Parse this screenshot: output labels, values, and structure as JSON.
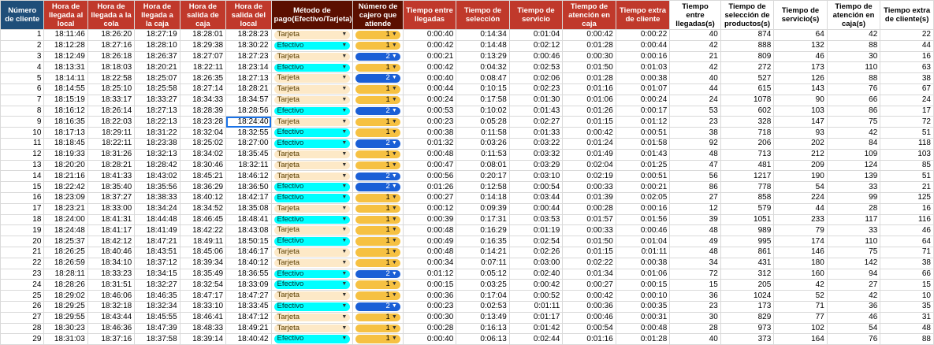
{
  "headers": [
    "Número de cliente",
    "Hora de llegada al local",
    "Hora de llegada a la cola",
    "Hora de llegada a la caja",
    "Hora de salida de caja",
    "Hora de salida del local",
    "Método de pago(Efectivo/Tarjeta)",
    "Número de cajero que atiende",
    "Tiempo entre llegadas",
    "Tiempo de selección",
    "Tiempo de servicio",
    "Tiempo de atención en caja",
    "Tiempo extra de cliente",
    "Tiempo entre llegadas(s)",
    "Tiempo de selección de productos(s)",
    "Tiempo de servicio(s)",
    "Tiempo de atención en caja(s)",
    "Tiempo extra de cliente(s)"
  ],
  "colors": {
    "header_blue": "#1f4e79",
    "header_red": "#c0392b",
    "header_dark": "#5b0f00",
    "chip_tarjeta": "#fde9c7",
    "chip_efectivo": "#00ffff",
    "chip_cajero_1": "#f6c142",
    "chip_cajero_2": "#1a5fd6",
    "selection": "#1a73e8"
  },
  "icons": {
    "dropdown": "dropdown-arrow-icon"
  },
  "selected_cell": {
    "row": 9,
    "col": 5
  },
  "rows": [
    [
      "1",
      "18:11:46",
      "18:26:20",
      "18:27:19",
      "18:28:01",
      "18:28:23",
      "Tarjeta",
      "1",
      "0:00:40",
      "0:14:34",
      "0:01:04",
      "0:00:42",
      "0:00:22",
      "40",
      "874",
      "64",
      "42",
      "22"
    ],
    [
      "2",
      "18:12:28",
      "18:27:16",
      "18:28:10",
      "18:29:38",
      "18:30:22",
      "Efectivo",
      "1",
      "0:00:42",
      "0:14:48",
      "0:02:12",
      "0:01:28",
      "0:00:44",
      "42",
      "888",
      "132",
      "88",
      "44"
    ],
    [
      "3",
      "18:12:49",
      "18:26:18",
      "18:26:37",
      "18:27:07",
      "18:27:23",
      "Tarjeta",
      "2",
      "0:00:21",
      "0:13:29",
      "0:00:46",
      "0:00:30",
      "0:00:16",
      "21",
      "809",
      "46",
      "30",
      "16"
    ],
    [
      "4",
      "18:13:31",
      "18:18:03",
      "18:20:21",
      "18:22:11",
      "18:23:14",
      "Efectivo",
      "1",
      "0:00:42",
      "0:04:32",
      "0:02:53",
      "0:01:50",
      "0:01:03",
      "42",
      "272",
      "173",
      "110",
      "63"
    ],
    [
      "5",
      "18:14:11",
      "18:22:58",
      "18:25:07",
      "18:26:35",
      "18:27:13",
      "Tarjeta",
      "2",
      "0:00:40",
      "0:08:47",
      "0:02:06",
      "0:01:28",
      "0:00:38",
      "40",
      "527",
      "126",
      "88",
      "38"
    ],
    [
      "6",
      "18:14:55",
      "18:25:10",
      "18:25:58",
      "18:27:14",
      "18:28:21",
      "Tarjeta",
      "1",
      "0:00:44",
      "0:10:15",
      "0:02:23",
      "0:01:16",
      "0:01:07",
      "44",
      "615",
      "143",
      "76",
      "67"
    ],
    [
      "7",
      "18:15:19",
      "18:33:17",
      "18:33:27",
      "18:34:33",
      "18:34:57",
      "Tarjeta",
      "1",
      "0:00:24",
      "0:17:58",
      "0:01:30",
      "0:01:06",
      "0:00:24",
      "24",
      "1078",
      "90",
      "66",
      "24"
    ],
    [
      "8",
      "18:16:12",
      "18:26:14",
      "18:27:13",
      "18:28:39",
      "18:28:56",
      "Efectivo",
      "2",
      "0:00:53",
      "0:10:02",
      "0:01:43",
      "0:01:26",
      "0:00:17",
      "53",
      "602",
      "103",
      "86",
      "17"
    ],
    [
      "9",
      "18:16:35",
      "18:22:03",
      "18:22:13",
      "18:23:28",
      "18:24:40",
      "Tarjeta",
      "1",
      "0:00:23",
      "0:05:28",
      "0:02:27",
      "0:01:15",
      "0:01:12",
      "23",
      "328",
      "147",
      "75",
      "72"
    ],
    [
      "10",
      "18:17:13",
      "18:29:11",
      "18:31:22",
      "18:32:04",
      "18:32:55",
      "Efectivo",
      "1",
      "0:00:38",
      "0:11:58",
      "0:01:33",
      "0:00:42",
      "0:00:51",
      "38",
      "718",
      "93",
      "42",
      "51"
    ],
    [
      "11",
      "18:18:45",
      "18:22:11",
      "18:23:38",
      "18:25:02",
      "18:27:00",
      "Efectivo",
      "2",
      "0:01:32",
      "0:03:26",
      "0:03:22",
      "0:01:24",
      "0:01:58",
      "92",
      "206",
      "202",
      "84",
      "118"
    ],
    [
      "12",
      "18:19:33",
      "18:31:26",
      "18:32:13",
      "18:34:02",
      "18:35:45",
      "Tarjeta",
      "1",
      "0:00:48",
      "0:11:53",
      "0:03:32",
      "0:01:49",
      "0:01:43",
      "48",
      "713",
      "212",
      "109",
      "103"
    ],
    [
      "13",
      "18:20:20",
      "18:28:21",
      "18:28:42",
      "18:30:46",
      "18:32:11",
      "Tarjeta",
      "1",
      "0:00:47",
      "0:08:01",
      "0:03:29",
      "0:02:04",
      "0:01:25",
      "47",
      "481",
      "209",
      "124",
      "85"
    ],
    [
      "14",
      "18:21:16",
      "18:41:33",
      "18:43:02",
      "18:45:21",
      "18:46:12",
      "Tarjeta",
      "2",
      "0:00:56",
      "0:20:17",
      "0:03:10",
      "0:02:19",
      "0:00:51",
      "56",
      "1217",
      "190",
      "139",
      "51"
    ],
    [
      "15",
      "18:22:42",
      "18:35:40",
      "18:35:56",
      "18:36:29",
      "18:36:50",
      "Efectivo",
      "2",
      "0:01:26",
      "0:12:58",
      "0:00:54",
      "0:00:33",
      "0:00:21",
      "86",
      "778",
      "54",
      "33",
      "21"
    ],
    [
      "16",
      "18:23:09",
      "18:37:27",
      "18:38:33",
      "18:40:12",
      "18:42:17",
      "Efectivo",
      "1",
      "0:00:27",
      "0:14:18",
      "0:03:44",
      "0:01:39",
      "0:02:05",
      "27",
      "858",
      "224",
      "99",
      "125"
    ],
    [
      "17",
      "18:23:21",
      "18:33:00",
      "18:34:24",
      "18:34:52",
      "18:35:08",
      "Tarjeta",
      "1",
      "0:00:12",
      "0:09:39",
      "0:00:44",
      "0:00:28",
      "0:00:16",
      "12",
      "579",
      "44",
      "28",
      "16"
    ],
    [
      "18",
      "18:24:00",
      "18:41:31",
      "18:44:48",
      "18:46:45",
      "18:48:41",
      "Efectivo",
      "1",
      "0:00:39",
      "0:17:31",
      "0:03:53",
      "0:01:57",
      "0:01:56",
      "39",
      "1051",
      "233",
      "117",
      "116"
    ],
    [
      "19",
      "18:24:48",
      "18:41:17",
      "18:41:49",
      "18:42:22",
      "18:43:08",
      "Tarjeta",
      "1",
      "0:00:48",
      "0:16:29",
      "0:01:19",
      "0:00:33",
      "0:00:46",
      "48",
      "989",
      "79",
      "33",
      "46"
    ],
    [
      "20",
      "18:25:37",
      "18:42:12",
      "18:47:21",
      "18:49:11",
      "18:50:15",
      "Efectivo",
      "1",
      "0:00:49",
      "0:16:35",
      "0:02:54",
      "0:01:50",
      "0:01:04",
      "49",
      "995",
      "174",
      "110",
      "64"
    ],
    [
      "21",
      "18:26:25",
      "18:40:46",
      "18:43:51",
      "18:45:06",
      "18:46:17",
      "Tarjeta",
      "1",
      "0:00:48",
      "0:14:21",
      "0:02:26",
      "0:01:15",
      "0:01:11",
      "48",
      "861",
      "146",
      "75",
      "71"
    ],
    [
      "22",
      "18:26:59",
      "18:34:10",
      "18:37:12",
      "18:39:34",
      "18:40:12",
      "Tarjeta",
      "1",
      "0:00:34",
      "0:07:11",
      "0:03:00",
      "0:02:22",
      "0:00:38",
      "34",
      "431",
      "180",
      "142",
      "38"
    ],
    [
      "23",
      "18:28:11",
      "18:33:23",
      "18:34:15",
      "18:35:49",
      "18:36:55",
      "Efectivo",
      "2",
      "0:01:12",
      "0:05:12",
      "0:02:40",
      "0:01:34",
      "0:01:06",
      "72",
      "312",
      "160",
      "94",
      "66"
    ],
    [
      "24",
      "18:28:26",
      "18:31:51",
      "18:32:27",
      "18:32:54",
      "18:33:09",
      "Efectivo",
      "1",
      "0:00:15",
      "0:03:25",
      "0:00:42",
      "0:00:27",
      "0:00:15",
      "15",
      "205",
      "42",
      "27",
      "15"
    ],
    [
      "25",
      "18:29:02",
      "18:46:06",
      "18:46:35",
      "18:47:17",
      "18:47:27",
      "Tarjeta",
      "1",
      "0:00:36",
      "0:17:04",
      "0:00:52",
      "0:00:42",
      "0:00:10",
      "36",
      "1024",
      "52",
      "42",
      "10"
    ],
    [
      "26",
      "18:29:25",
      "18:32:18",
      "18:32:34",
      "18:33:10",
      "18:33:45",
      "Efectivo",
      "2",
      "0:00:23",
      "0:02:53",
      "0:01:11",
      "0:00:36",
      "0:00:35",
      "23",
      "173",
      "71",
      "36",
      "35"
    ],
    [
      "27",
      "18:29:55",
      "18:43:44",
      "18:45:55",
      "18:46:41",
      "18:47:12",
      "Tarjeta",
      "1",
      "0:00:30",
      "0:13:49",
      "0:01:17",
      "0:00:46",
      "0:00:31",
      "30",
      "829",
      "77",
      "46",
      "31"
    ],
    [
      "28",
      "18:30:23",
      "18:46:36",
      "18:47:39",
      "18:48:33",
      "18:49:21",
      "Tarjeta",
      "1",
      "0:00:28",
      "0:16:13",
      "0:01:42",
      "0:00:54",
      "0:00:48",
      "28",
      "973",
      "102",
      "54",
      "48"
    ],
    [
      "29",
      "18:31:03",
      "18:37:16",
      "18:37:58",
      "18:39:14",
      "18:40:42",
      "Efectivo",
      "1",
      "0:00:40",
      "0:06:13",
      "0:02:44",
      "0:01:16",
      "0:01:28",
      "40",
      "373",
      "164",
      "76",
      "88"
    ]
  ]
}
